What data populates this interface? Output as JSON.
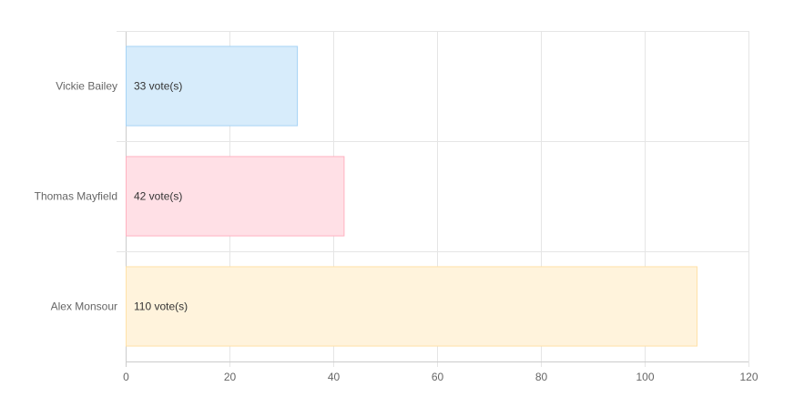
{
  "chart_data": {
    "type": "bar",
    "orientation": "horizontal",
    "categories": [
      "Vickie Bailey",
      "Thomas Mayfield",
      "Alex Monsour"
    ],
    "values": [
      33,
      42,
      110
    ],
    "data_labels": [
      "33 vote(s)",
      "42 vote(s)",
      "110 vote(s)"
    ],
    "xlim": [
      0,
      120
    ],
    "x_ticks": [
      "0",
      "20",
      "40",
      "60",
      "80",
      "100",
      "120"
    ],
    "grid": true,
    "legend": "none",
    "colors": {
      "fills": [
        "#d7ecfb",
        "#ffe0e6",
        "#fff3dc"
      ],
      "strokes": [
        "#a6d3f5",
        "#ffb1c1",
        "#ffe1a8"
      ],
      "grid": "#e5e5e5",
      "axis": "#cccccc"
    }
  }
}
